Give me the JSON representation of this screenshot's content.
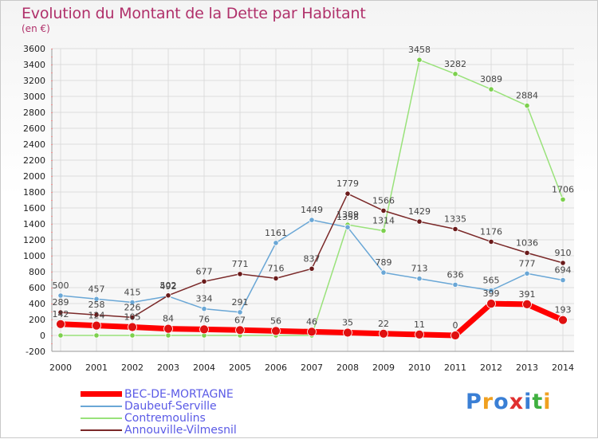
{
  "title": "Evolution du Montant de la Dette par Habitant",
  "subtitle": "(en €)",
  "logo": {
    "text": "Proxiti",
    "colors": [
      "#3a7fd5",
      "#f0a020",
      "#3a7fd5",
      "#e03030",
      "#3a7fd5",
      "#40b040",
      "#f0a020"
    ]
  },
  "chart_data": {
    "type": "line",
    "x": [
      2000,
      2001,
      2002,
      2003,
      2004,
      2005,
      2006,
      2007,
      2008,
      2009,
      2010,
      2011,
      2012,
      2013,
      2014
    ],
    "ylim": [
      -200,
      3600
    ],
    "yticks": [
      -200,
      0,
      200,
      400,
      600,
      800,
      1000,
      1200,
      1400,
      1600,
      1800,
      2000,
      2200,
      2400,
      2600,
      2800,
      3000,
      3200,
      3400,
      3600
    ],
    "grid": true,
    "series": [
      {
        "name": "BEC-DE-MORTAGNE",
        "color": "#ff0000",
        "marker": "#e01010",
        "width": 7,
        "values": [
          142,
          124,
          105,
          84,
          76,
          67,
          56,
          46,
          35,
          22,
          11,
          0,
          399,
          391,
          193
        ],
        "labels": [
          "142",
          "124",
          "105",
          "84",
          "76",
          "67",
          "56",
          "46",
          "35",
          "22",
          "11",
          "0",
          "399",
          "391",
          "193"
        ]
      },
      {
        "name": "Daubeuf-Serville",
        "color": "#6aa7d6",
        "marker": "#6aa7d6",
        "width": 1.5,
        "values": [
          500,
          457,
          415,
          492,
          334,
          291,
          1161,
          1449,
          1358,
          789,
          713,
          636,
          565,
          777,
          694
        ],
        "labels": [
          "500",
          "457",
          "415",
          "492",
          "334",
          "291",
          "1161",
          "1449",
          "1358",
          "789",
          "713",
          "636",
          "565",
          "777",
          "694"
        ]
      },
      {
        "name": "Contremoulins",
        "color": "#99e27a",
        "marker": "#7cd04d",
        "width": 1.5,
        "values": [
          0,
          0,
          0,
          0,
          0,
          0,
          0,
          0,
          1389,
          1314,
          3458,
          3282,
          3089,
          2884,
          1706
        ],
        "labels": [
          "",
          "",
          "",
          "",
          "",
          "",
          "",
          "",
          "1389",
          "1314",
          "3458",
          "3282",
          "3089",
          "2884",
          "1706"
        ]
      },
      {
        "name": "Annouville-Vilmesnil",
        "color": "#7a2828",
        "marker": "#6a1a1a",
        "width": 1.5,
        "values": [
          289,
          258,
          226,
          502,
          677,
          771,
          716,
          837,
          1779,
          1566,
          1429,
          1335,
          1176,
          1036,
          910
        ],
        "labels": [
          "289",
          "258",
          "226",
          "502",
          "677",
          "771",
          "716",
          "837",
          "1779",
          "1566",
          "1429",
          "1335",
          "1176",
          "1036",
          "910"
        ]
      }
    ]
  }
}
